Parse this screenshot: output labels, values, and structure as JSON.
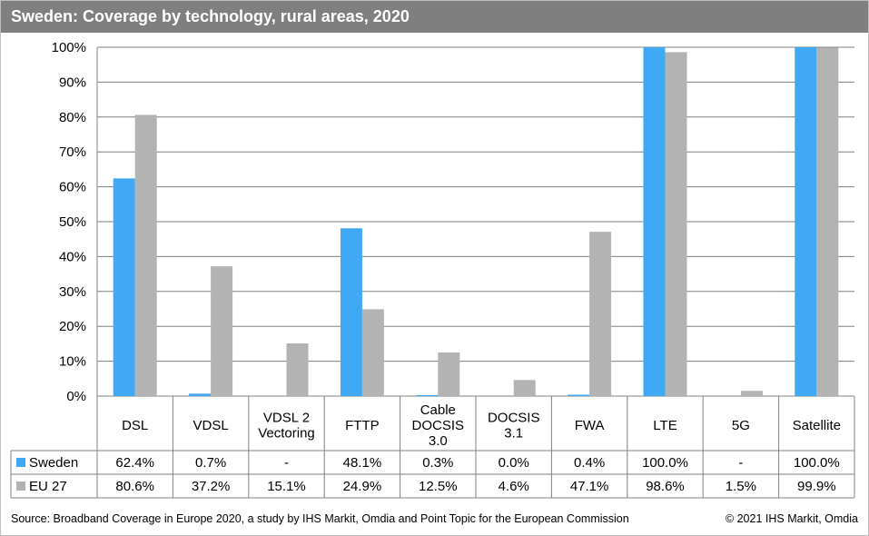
{
  "title": "Sweden: Coverage by technology, rural areas, 2020",
  "footer": {
    "source": "Source: Broadband Coverage in Europe 2020, a study by IHS Markit, Omdia and Point Topic for the European Commission",
    "copyright": "© 2021 IHS Markit, Omdia"
  },
  "chart_data": {
    "type": "bar",
    "categories": [
      [
        "DSL"
      ],
      [
        "VDSL"
      ],
      [
        "VDSL 2",
        "Vectoring"
      ],
      [
        "FTTP"
      ],
      [
        "Cable",
        "DOCSIS",
        "3.0"
      ],
      [
        "DOCSIS",
        "3.1"
      ],
      [
        "FWA"
      ],
      [
        "LTE"
      ],
      [
        "5G"
      ],
      [
        "Satellite"
      ]
    ],
    "series": [
      {
        "name": "Sweden",
        "color": "#3fa9f5",
        "values": [
          62.4,
          0.7,
          0,
          48.1,
          0.3,
          0.0,
          0.4,
          100.0,
          0,
          100.0
        ],
        "labels": [
          "62.4%",
          "0.7%",
          "-",
          "48.1%",
          "0.3%",
          "0.0%",
          "0.4%",
          "100.0%",
          "-",
          "100.0%"
        ]
      },
      {
        "name": "EU 27",
        "color": "#b3b3b3",
        "values": [
          80.6,
          37.2,
          15.1,
          24.9,
          12.5,
          4.6,
          47.1,
          98.6,
          1.5,
          99.9
        ],
        "labels": [
          "80.6%",
          "37.2%",
          "15.1%",
          "24.9%",
          "12.5%",
          "4.6%",
          "47.1%",
          "98.6%",
          "1.5%",
          "99.9%"
        ]
      }
    ],
    "ylim": [
      0,
      100
    ],
    "yticks": [
      "0%",
      "10%",
      "20%",
      "30%",
      "40%",
      "50%",
      "60%",
      "70%",
      "80%",
      "90%",
      "100%"
    ],
    "grid": true,
    "legend": "data-table"
  }
}
